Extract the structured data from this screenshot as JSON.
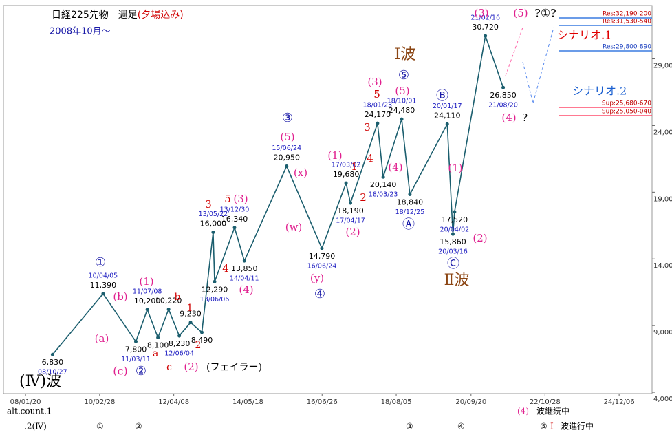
{
  "chart_data": {
    "type": "line",
    "title": "日経225先物　週足",
    "title_note": "(夕場込み)",
    "subtitle": "2008年10月～",
    "x": [
      "08/10/27",
      "10/04/05",
      "11/03/11",
      "11/07/08",
      null,
      null,
      "12/06/04",
      null,
      null,
      "13/05/22",
      "13/06/06",
      "13/12/30",
      "14/04/11",
      "15/06/24",
      "16/06/24",
      "17/03/02",
      "17/04/17",
      "18/01/23",
      "18/03/23",
      "18/10/01",
      "18/12/25",
      "20/01/17",
      "20/03/16",
      "20/04/02",
      "21/02/16",
      "21/08/20"
    ],
    "values": [
      6830,
      11390,
      7800,
      10200,
      8100,
      10220,
      8230,
      9230,
      8490,
      16000,
      12290,
      16340,
      13850,
      20950,
      14790,
      19680,
      18190,
      24170,
      20140,
      24480,
      18840,
      24110,
      15860,
      17520,
      30720,
      26850
    ],
    "value_labels": [
      "6,830",
      "11,390",
      "7,800",
      "10,200",
      "8,100",
      "10,220",
      "8,230",
      "9,230",
      "8,490",
      "16,000",
      "12,290",
      "16,340",
      "13,850",
      "20,950",
      "14,790",
      "19,680",
      "18,190",
      "24,170",
      "20,140",
      "24,480",
      "18,840",
      "24,110",
      "15,860",
      "17,520",
      "30,720",
      "26,850"
    ],
    "color": "#1b5e6e",
    "xlim": [
      "07/06/05",
      "25/11/13"
    ],
    "xticks": [
      "08/01/20",
      "10/02/28",
      "12/04/08",
      "14/05/18",
      "16/06/26",
      "18/08/05",
      "20/09/20",
      "22/10/28",
      "24/12/06"
    ],
    "ylim": [
      3900,
      33000
    ],
    "yticks": [
      {
        "value": 4000,
        "label": "4,000"
      },
      {
        "value": 9000,
        "label": "9,000"
      },
      {
        "value": 14000,
        "label": "14,000"
      },
      {
        "value": 19000,
        "label": "19,000"
      },
      {
        "value": 24000,
        "label": "24,000"
      },
      {
        "value": 29000,
        "label": "29,000"
      }
    ],
    "levels": [
      {
        "text": "Res:32,190-200",
        "color": "#c00000"
      },
      {
        "text": "Res:31,530-540",
        "color": "#c00000"
      },
      {
        "text": "Res:29,800-890",
        "color": "#1a3fbf"
      },
      {
        "text": "Sup:25,680-670",
        "color": "#c00000"
      },
      {
        "text": "Sup:25,050-040",
        "color": "#c00000"
      }
    ],
    "annotations": [
      {
        "text": "(Ⅳ)波",
        "color": "#000000"
      },
      {
        "text": "(c)",
        "color": "#e0208f"
      },
      {
        "text": "②",
        "color": "#1a1aa8"
      },
      {
        "text": "(a)",
        "color": "#e0208f"
      },
      {
        "text": "(b)",
        "color": "#e0208f"
      },
      {
        "text": "(1)",
        "color": "#e0208f"
      },
      {
        "text": "①",
        "color": "#1a1aa8"
      },
      {
        "text": "b",
        "color": "#d00000"
      },
      {
        "text": "1",
        "color": "#d00000"
      },
      {
        "text": "a",
        "color": "#d00000"
      },
      {
        "text": "2",
        "color": "#d00000"
      },
      {
        "text": "c",
        "color": "#d00000"
      },
      {
        "text": "(2)",
        "color": "#e0208f"
      },
      {
        "text": "(フェイラー)",
        "color": "#000000"
      },
      {
        "text": "3",
        "color": "#d00000"
      },
      {
        "text": "4",
        "color": "#d00000"
      },
      {
        "text": "5",
        "color": "#d00000"
      },
      {
        "text": "(3)",
        "color": "#e0208f"
      },
      {
        "text": "(4)",
        "color": "#e0208f"
      },
      {
        "text": "③",
        "color": "#1a1aa8"
      },
      {
        "text": "(5)",
        "color": "#e0208f"
      },
      {
        "text": "(x)",
        "color": "#e0208f"
      },
      {
        "text": "(w)",
        "color": "#e0208f"
      },
      {
        "text": "(y)",
        "color": "#e0208f"
      },
      {
        "text": "④",
        "color": "#1a1aa8"
      },
      {
        "text": "(1)",
        "color": "#e0208f"
      },
      {
        "text": "1",
        "color": "#d00000"
      },
      {
        "text": "(2)",
        "color": "#e0208f"
      },
      {
        "text": "2",
        "color": "#d00000"
      },
      {
        "text": "3",
        "color": "#d00000"
      },
      {
        "text": "4",
        "color": "#d00000"
      },
      {
        "text": "(3)",
        "color": "#e0208f"
      },
      {
        "text": "5",
        "color": "#d00000"
      },
      {
        "text": "Ⅰ波",
        "color": "#8b4513"
      },
      {
        "text": "⑤",
        "color": "#1a1aa8"
      },
      {
        "text": "(5)",
        "color": "#e0208f"
      },
      {
        "text": "(4)",
        "color": "#e0208f"
      },
      {
        "text": "Ⓐ",
        "color": "#1a1aa8"
      },
      {
        "text": "Ⓑ",
        "color": "#1a1aa8"
      },
      {
        "text": "(1)",
        "color": "#e0208f"
      },
      {
        "text": "(2)",
        "color": "#e0208f"
      },
      {
        "text": "Ⓒ",
        "color": "#1a1aa8"
      },
      {
        "text": "Ⅱ波",
        "color": "#8b4513"
      },
      {
        "text": "(3)",
        "color": "#e0208f"
      },
      {
        "text": "(5)",
        "color": "#e0208f"
      },
      {
        "text": "?①?",
        "color": "#000000"
      },
      {
        "text": "シナリオ.1",
        "color": "#e00000"
      },
      {
        "text": "シナリオ.2",
        "color": "#1a5fd0"
      },
      {
        "text": "(4)",
        "color": "#e0208f"
      },
      {
        "text": "?",
        "color": "#000000"
      },
      {
        "text": "alt.count.1",
        "color": "#000000"
      },
      {
        "text": ".2(Ⅳ)",
        "color": "#000000"
      },
      {
        "text": "①",
        "color": "#000000"
      },
      {
        "text": "②",
        "color": "#000000"
      },
      {
        "text": "③",
        "color": "#000000"
      },
      {
        "text": "④",
        "color": "#000000"
      },
      {
        "text": "⑤",
        "color": "#000000"
      },
      {
        "text": "Ⅰ",
        "color": "#d00000"
      },
      {
        "text": "波進行中",
        "color": "#000000"
      },
      {
        "text": "(4)",
        "color": "#e0208f"
      },
      {
        "text": "波継続中",
        "color": "#000000"
      }
    ]
  }
}
